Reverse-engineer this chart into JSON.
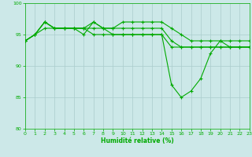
{
  "title": "",
  "xlabel": "Humidité relative (%)",
  "ylabel": "",
  "bg_color": "#cce8e8",
  "grid_color": "#aacccc",
  "line_color": "#00aa00",
  "marker": "+",
  "ylim": [
    80,
    100
  ],
  "xlim": [
    0,
    23
  ],
  "yticks": [
    80,
    85,
    90,
    95,
    100
  ],
  "xticks": [
    0,
    1,
    2,
    3,
    4,
    5,
    6,
    7,
    8,
    9,
    10,
    11,
    12,
    13,
    14,
    15,
    16,
    17,
    18,
    19,
    20,
    21,
    22,
    23
  ],
  "series": [
    [
      94,
      95,
      97,
      96,
      96,
      96,
      96,
      97,
      96,
      96,
      97,
      97,
      97,
      97,
      97,
      96,
      95,
      94,
      94,
      94,
      94,
      94,
      94,
      94
    ],
    [
      94,
      95,
      97,
      96,
      96,
      96,
      96,
      96,
      96,
      96,
      96,
      96,
      96,
      96,
      96,
      94,
      93,
      93,
      93,
      93,
      93,
      93,
      93,
      93
    ],
    [
      94,
      95,
      96,
      96,
      96,
      96,
      95,
      97,
      96,
      95,
      95,
      95,
      95,
      95,
      95,
      87,
      85,
      86,
      88,
      92,
      94,
      93,
      93,
      93
    ],
    [
      94,
      95,
      97,
      96,
      96,
      96,
      96,
      95,
      95,
      95,
      95,
      95,
      95,
      95,
      95,
      93,
      93,
      93,
      93,
      93,
      93,
      93,
      93,
      93
    ]
  ]
}
